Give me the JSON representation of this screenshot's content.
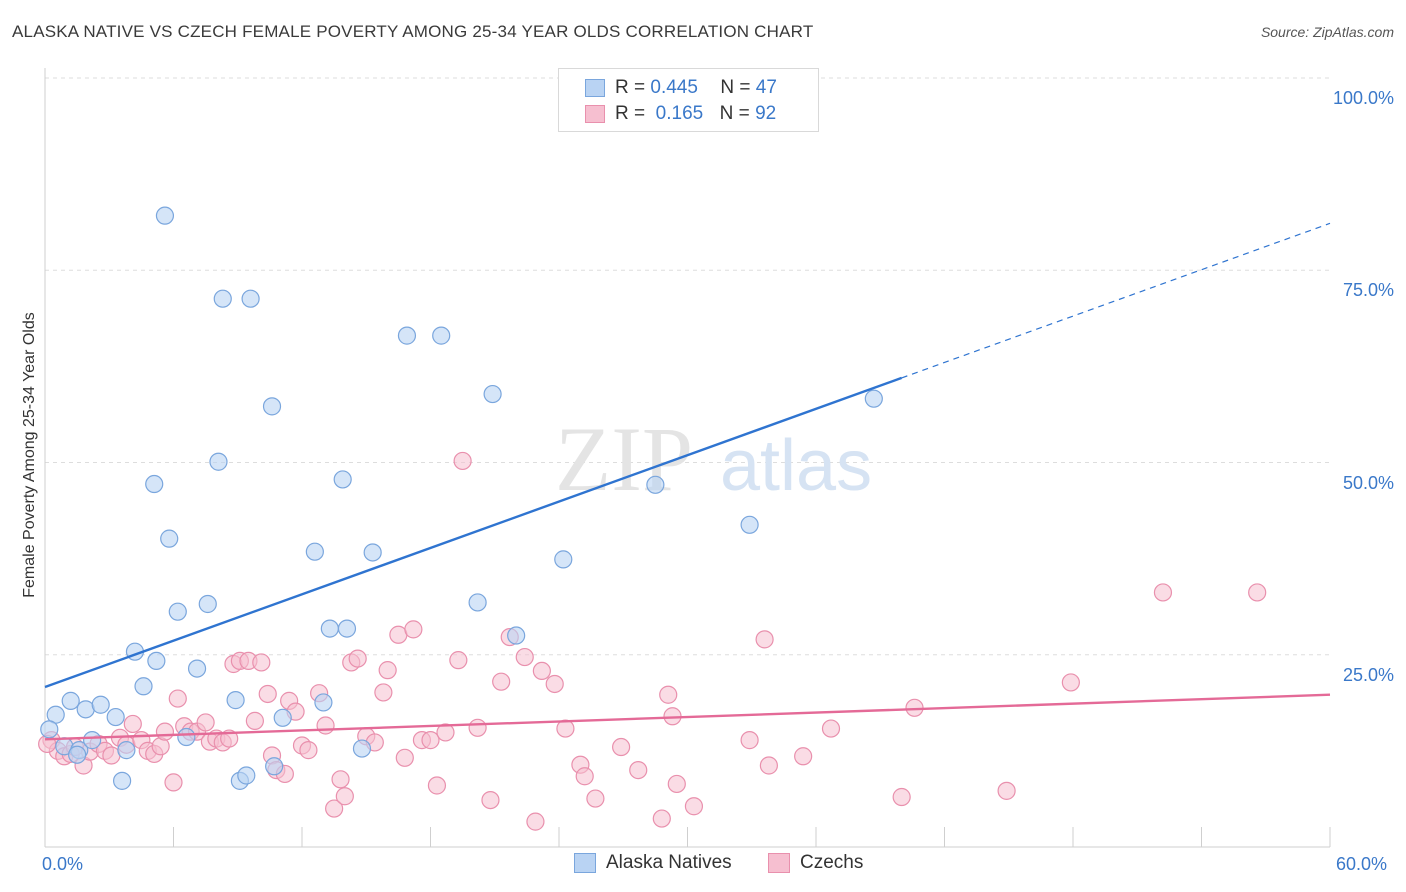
{
  "header": {
    "title": "ALASKA NATIVE VS CZECH FEMALE POVERTY AMONG 25-34 YEAR OLDS CORRELATION CHART",
    "source": "Source: ZipAtlas.com"
  },
  "watermark": {
    "zip": "ZIP",
    "atlas": "atlas"
  },
  "legend_top": [
    {
      "r_label": "R =",
      "r_value": "0.445",
      "n_label": "N =",
      "n_value": "47"
    },
    {
      "r_label": "R =",
      "r_value": "0.165",
      "n_label": "N =",
      "n_value": "92"
    }
  ],
  "colors": {
    "blue_fill": "#b9d3f3",
    "blue_stroke": "#7aa6dd",
    "blue_line": "#2f74d0",
    "pink_fill": "#f6bfd0",
    "pink_stroke": "#e990ad",
    "pink_line": "#e46a97",
    "axis_text": "#3a78c9",
    "grid": "#dddddd"
  },
  "chart_data": {
    "type": "scatter",
    "title": "ALASKA NATIVE VS CZECH FEMALE POVERTY AMONG 25-34 YEAR OLDS CORRELATION CHART",
    "xlabel": "",
    "ylabel": "Female Poverty Among 25-34 Year Olds",
    "xlim": [
      0,
      60
    ],
    "ylim": [
      0,
      103
    ],
    "x_tick_labels": [
      "0.0%",
      "60.0%"
    ],
    "y_tick_labels": [
      "100.0%",
      "75.0%",
      "50.0%",
      "25.0%"
    ],
    "y_ticks": [
      100,
      75,
      50,
      25
    ],
    "grid": true,
    "legend_placement": "top-center",
    "series": [
      {
        "name": "Alaska Natives",
        "r": 0.445,
        "n": 47,
        "trend": {
          "x0": 0,
          "y0": 20.8,
          "x1": 40,
          "y1": 61.0,
          "dashed_to_x": 60,
          "dashed_to_y": 81.1
        },
        "points": [
          [
            0.5,
            17.2
          ],
          [
            0.9,
            13.1
          ],
          [
            1.2,
            19.0
          ],
          [
            1.6,
            12.6
          ],
          [
            1.9,
            17.9
          ],
          [
            2.2,
            13.9
          ],
          [
            2.6,
            18.5
          ],
          [
            3.3,
            16.9
          ],
          [
            3.6,
            8.6
          ],
          [
            3.8,
            12.6
          ],
          [
            4.2,
            25.4
          ],
          [
            4.6,
            20.9
          ],
          [
            5.1,
            47.2
          ],
          [
            5.2,
            24.2
          ],
          [
            5.6,
            82.1
          ],
          [
            5.8,
            40.1
          ],
          [
            6.2,
            30.6
          ],
          [
            6.6,
            14.3
          ],
          [
            7.1,
            23.2
          ],
          [
            7.6,
            31.6
          ],
          [
            8.1,
            50.1
          ],
          [
            8.3,
            71.3
          ],
          [
            8.9,
            19.1
          ],
          [
            9.1,
            8.6
          ],
          [
            9.4,
            9.3
          ],
          [
            9.6,
            71.3
          ],
          [
            10.6,
            57.3
          ],
          [
            10.7,
            10.5
          ],
          [
            11.1,
            16.8
          ],
          [
            12.6,
            38.4
          ],
          [
            13.0,
            18.8
          ],
          [
            13.3,
            28.4
          ],
          [
            13.9,
            47.8
          ],
          [
            14.1,
            28.4
          ],
          [
            14.8,
            12.8
          ],
          [
            15.3,
            38.3
          ],
          [
            16.9,
            66.5
          ],
          [
            18.5,
            66.5
          ],
          [
            20.2,
            31.8
          ],
          [
            20.9,
            58.9
          ],
          [
            22.0,
            27.5
          ],
          [
            24.2,
            37.4
          ],
          [
            28.5,
            47.1
          ],
          [
            32.9,
            41.9
          ],
          [
            38.7,
            58.3
          ],
          [
            0.2,
            15.3
          ],
          [
            1.5,
            12.0
          ]
        ]
      },
      {
        "name": "Czechs",
        "r": 0.165,
        "n": 92,
        "trend": {
          "x0": 0,
          "y0": 14.0,
          "x1": 60,
          "y1": 19.8
        },
        "points": [
          [
            0.3,
            13.9
          ],
          [
            0.6,
            12.5
          ],
          [
            0.9,
            11.8
          ],
          [
            1.2,
            12.1
          ],
          [
            1.4,
            13.0
          ],
          [
            1.8,
            10.6
          ],
          [
            2.1,
            12.4
          ],
          [
            2.5,
            13.4
          ],
          [
            2.8,
            12.5
          ],
          [
            3.1,
            11.9
          ],
          [
            3.5,
            14.2
          ],
          [
            3.8,
            13.3
          ],
          [
            4.1,
            16.0
          ],
          [
            4.5,
            13.9
          ],
          [
            4.8,
            12.5
          ],
          [
            5.1,
            12.1
          ],
          [
            5.4,
            13.1
          ],
          [
            5.6,
            15.0
          ],
          [
            6.0,
            8.4
          ],
          [
            6.2,
            19.3
          ],
          [
            6.5,
            15.7
          ],
          [
            6.8,
            15.0
          ],
          [
            7.1,
            15.0
          ],
          [
            7.5,
            16.2
          ],
          [
            7.7,
            13.7
          ],
          [
            8.0,
            14.1
          ],
          [
            8.3,
            13.6
          ],
          [
            8.6,
            14.1
          ],
          [
            8.8,
            23.8
          ],
          [
            9.1,
            24.2
          ],
          [
            9.5,
            24.2
          ],
          [
            9.8,
            16.4
          ],
          [
            10.1,
            24.0
          ],
          [
            10.4,
            19.9
          ],
          [
            10.6,
            11.9
          ],
          [
            10.8,
            10.0
          ],
          [
            11.2,
            9.5
          ],
          [
            11.4,
            19.0
          ],
          [
            11.7,
            17.6
          ],
          [
            12.0,
            13.2
          ],
          [
            12.3,
            12.6
          ],
          [
            12.8,
            20.0
          ],
          [
            13.1,
            15.8
          ],
          [
            13.5,
            5.0
          ],
          [
            13.8,
            8.8
          ],
          [
            14.0,
            6.6
          ],
          [
            14.3,
            24.0
          ],
          [
            14.6,
            24.5
          ],
          [
            15.0,
            14.4
          ],
          [
            15.4,
            13.6
          ],
          [
            15.8,
            20.1
          ],
          [
            16.0,
            23.0
          ],
          [
            16.5,
            27.6
          ],
          [
            16.8,
            11.6
          ],
          [
            17.2,
            28.3
          ],
          [
            17.6,
            13.9
          ],
          [
            18.0,
            13.9
          ],
          [
            18.3,
            8.0
          ],
          [
            18.7,
            14.9
          ],
          [
            19.3,
            24.3
          ],
          [
            19.5,
            50.2
          ],
          [
            20.2,
            15.5
          ],
          [
            20.8,
            6.1
          ],
          [
            21.3,
            21.5
          ],
          [
            21.7,
            27.3
          ],
          [
            22.4,
            24.7
          ],
          [
            22.9,
            3.3
          ],
          [
            23.2,
            22.9
          ],
          [
            23.8,
            21.2
          ],
          [
            24.3,
            15.4
          ],
          [
            25.0,
            10.7
          ],
          [
            25.2,
            9.2
          ],
          [
            25.7,
            6.3
          ],
          [
            26.9,
            13.0
          ],
          [
            27.7,
            10.0
          ],
          [
            28.8,
            3.7
          ],
          [
            29.1,
            19.8
          ],
          [
            29.3,
            17.0
          ],
          [
            29.5,
            8.2
          ],
          [
            30.3,
            5.3
          ],
          [
            32.9,
            13.9
          ],
          [
            33.6,
            27.0
          ],
          [
            33.8,
            10.6
          ],
          [
            35.4,
            11.8
          ],
          [
            36.7,
            15.4
          ],
          [
            40.0,
            6.5
          ],
          [
            40.6,
            18.1
          ],
          [
            44.9,
            7.3
          ],
          [
            47.9,
            21.4
          ],
          [
            52.2,
            33.1
          ],
          [
            56.6,
            33.1
          ],
          [
            0.1,
            13.4
          ]
        ]
      }
    ]
  },
  "bottom_legend": {
    "series_a": "Alaska Natives",
    "series_b": "Czechs"
  }
}
